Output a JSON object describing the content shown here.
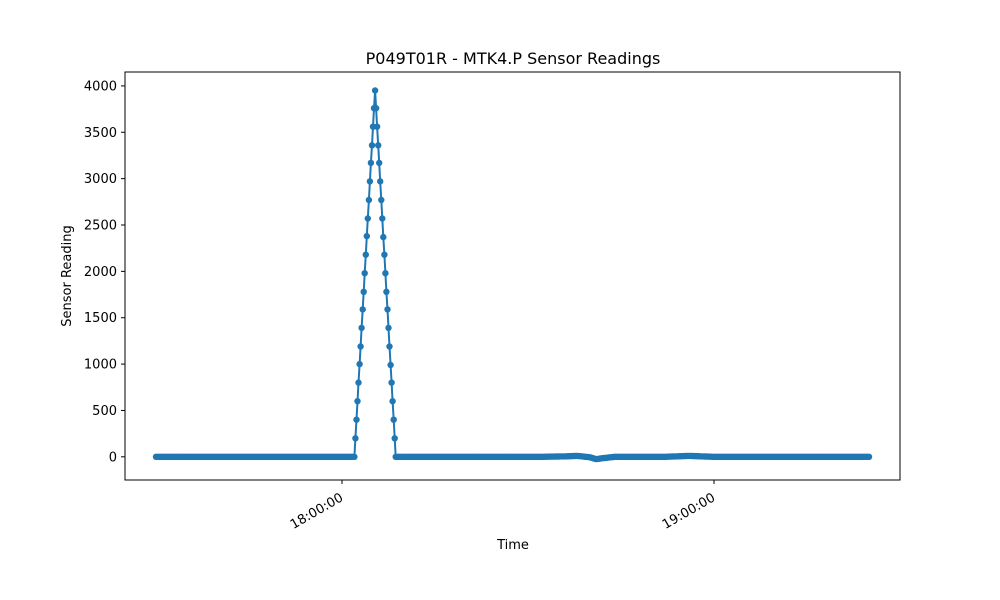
{
  "chart_data": {
    "type": "line",
    "title": "P049T01R - MTK4.P Sensor Readings",
    "xlabel": "Time",
    "ylabel": "Sensor Reading",
    "x_axis": {
      "start": "17:30:00",
      "end": "19:25:00",
      "ticks": [
        {
          "t": "18:00:00",
          "label": "18:00:00"
        },
        {
          "t": "19:00:00",
          "label": "19:00:00"
        }
      ]
    },
    "y_axis": {
      "min": -250,
      "max": 4150,
      "ticks": [
        0,
        500,
        1000,
        1500,
        2000,
        2500,
        3000,
        3500,
        4000
      ]
    },
    "grid": false,
    "marker": "circle",
    "line_color": "#1f77b4",
    "series": [
      {
        "name": "",
        "points": [
          [
            "17:30:00",
            0
          ],
          [
            "17:32:00",
            0
          ],
          [
            "17:34:00",
            0
          ],
          [
            "17:36:00",
            0
          ],
          [
            "17:38:00",
            0
          ],
          [
            "17:40:00",
            0
          ],
          [
            "17:42:00",
            0
          ],
          [
            "17:44:00",
            0
          ],
          [
            "17:46:00",
            0
          ],
          [
            "17:48:00",
            0
          ],
          [
            "17:50:00",
            0
          ],
          [
            "17:52:00",
            0
          ],
          [
            "17:54:00",
            0
          ],
          [
            "17:56:00",
            0
          ],
          [
            "17:58:00",
            0
          ],
          [
            "18:00:00",
            0
          ],
          [
            "18:02:00",
            0
          ],
          [
            "18:02:10",
            200
          ],
          [
            "18:02:20",
            400
          ],
          [
            "18:02:30",
            600
          ],
          [
            "18:02:40",
            800
          ],
          [
            "18:02:50",
            1000
          ],
          [
            "18:03:00",
            1190
          ],
          [
            "18:03:10",
            1390
          ],
          [
            "18:03:20",
            1590
          ],
          [
            "18:03:30",
            1780
          ],
          [
            "18:03:40",
            1980
          ],
          [
            "18:03:50",
            2180
          ],
          [
            "18:04:00",
            2380
          ],
          [
            "18:04:10",
            2570
          ],
          [
            "18:04:20",
            2770
          ],
          [
            "18:04:30",
            2970
          ],
          [
            "18:04:40",
            3170
          ],
          [
            "18:04:50",
            3360
          ],
          [
            "18:05:00",
            3560
          ],
          [
            "18:05:10",
            3760
          ],
          [
            "18:05:20",
            3950
          ],
          [
            "18:05:30",
            3760
          ],
          [
            "18:05:40",
            3560
          ],
          [
            "18:05:50",
            3360
          ],
          [
            "18:06:00",
            3170
          ],
          [
            "18:06:10",
            2970
          ],
          [
            "18:06:20",
            2770
          ],
          [
            "18:06:30",
            2570
          ],
          [
            "18:06:40",
            2370
          ],
          [
            "18:06:50",
            2180
          ],
          [
            "18:07:00",
            1980
          ],
          [
            "18:07:10",
            1780
          ],
          [
            "18:07:20",
            1590
          ],
          [
            "18:07:30",
            1390
          ],
          [
            "18:07:40",
            1190
          ],
          [
            "18:07:50",
            990
          ],
          [
            "18:08:00",
            800
          ],
          [
            "18:08:10",
            600
          ],
          [
            "18:08:20",
            400
          ],
          [
            "18:08:30",
            200
          ],
          [
            "18:08:40",
            0
          ],
          [
            "18:12:00",
            0
          ],
          [
            "18:16:00",
            0
          ],
          [
            "18:20:00",
            0
          ],
          [
            "18:24:00",
            0
          ],
          [
            "18:28:00",
            0
          ],
          [
            "18:32:00",
            0
          ],
          [
            "18:36:00",
            5
          ],
          [
            "18:38:00",
            10
          ],
          [
            "18:40:00",
            -5
          ],
          [
            "18:41:00",
            -25
          ],
          [
            "18:42:00",
            -15
          ],
          [
            "18:44:00",
            0
          ],
          [
            "18:48:00",
            0
          ],
          [
            "18:52:00",
            0
          ],
          [
            "18:56:00",
            10
          ],
          [
            "19:00:00",
            0
          ],
          [
            "19:04:00",
            0
          ],
          [
            "19:08:00",
            0
          ],
          [
            "19:12:00",
            0
          ],
          [
            "19:16:00",
            0
          ],
          [
            "19:20:00",
            0
          ],
          [
            "19:24:00",
            0
          ],
          [
            "19:25:00",
            0
          ]
        ]
      }
    ]
  }
}
